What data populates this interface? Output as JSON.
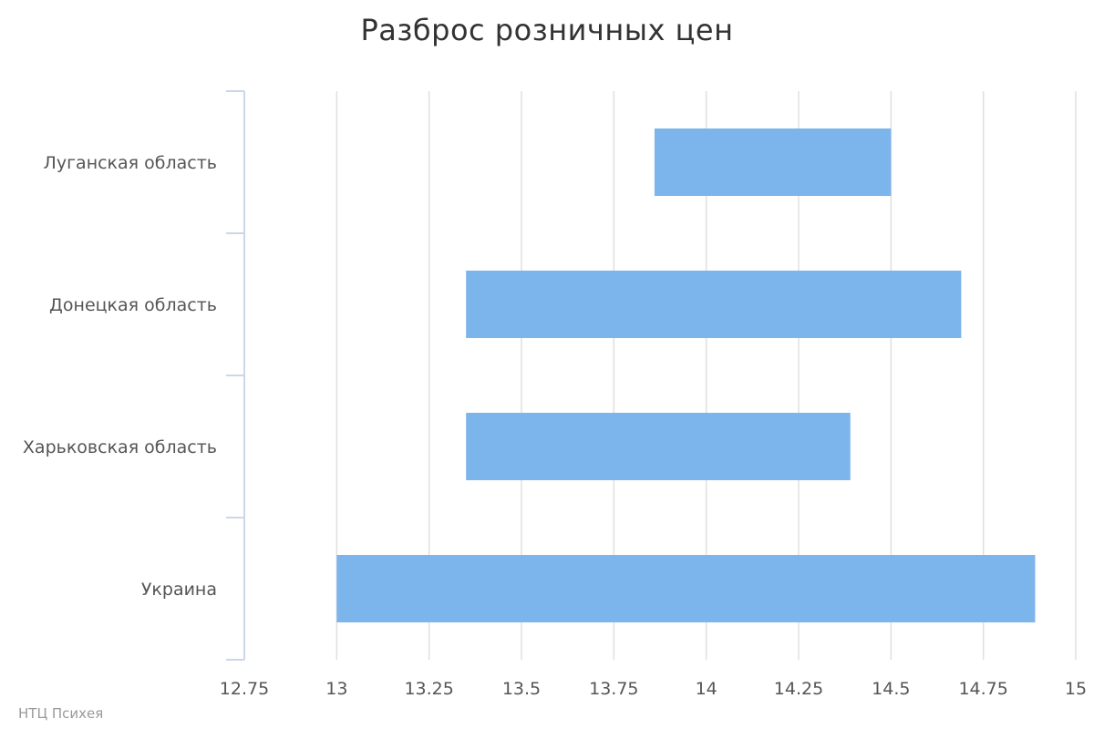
{
  "chart_data": {
    "type": "bar",
    "orientation": "horizontal",
    "subtype": "floating-range",
    "title": "Разброс розничных цен",
    "categories": [
      "Луганская область",
      "Донецкая область",
      "Харьковская область",
      "Украина"
    ],
    "series": [
      {
        "ranges": [
          [
            13.86,
            14.5
          ],
          [
            13.35,
            14.69
          ],
          [
            13.35,
            14.39
          ],
          [
            13.0,
            14.89
          ]
        ]
      }
    ],
    "xlim": [
      12.75,
      15
    ],
    "xticks": [
      "12.75",
      "13",
      "13.25",
      "13.5",
      "13.75",
      "14",
      "14.25",
      "14.5",
      "14.75",
      "15"
    ],
    "grid": true,
    "legend": "none",
    "bar_color": "#7cb4ec",
    "credit": "НТЦ Психея"
  }
}
